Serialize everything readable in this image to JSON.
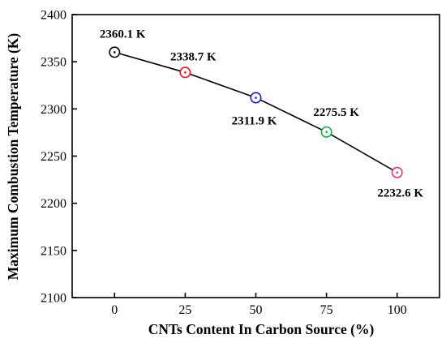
{
  "chart_data": {
    "type": "line",
    "title": "",
    "xlabel": "CNTs Content In Carbon Source (%)",
    "ylabel": "Maximum Combustion Temperature (K)",
    "x": [
      0,
      25,
      50,
      75,
      100
    ],
    "xlim": [
      -15,
      115
    ],
    "ylim": [
      2100,
      2400
    ],
    "xticks": [
      0,
      25,
      50,
      75,
      100
    ],
    "xtick_labels": [
      "0",
      "25",
      "50",
      "75",
      "100"
    ],
    "yticks": [
      2100,
      2150,
      2200,
      2250,
      2300,
      2350,
      2400
    ],
    "ytick_labels": [
      "2100",
      "2150",
      "2200",
      "2250",
      "2300",
      "2350",
      "2400"
    ],
    "grid": false,
    "series": [
      {
        "values": [
          2360.1,
          2338.7,
          2311.9,
          2275.5,
          2232.6
        ],
        "line_color": "#000000",
        "marker": "circle-dot",
        "marker_colors": [
          "#000000",
          "#ee1111",
          "#1a1acc",
          "#11aa44",
          "#e0348c"
        ],
        "data_labels": [
          "2360.1 K",
          "2338.7 K",
          "2311.9 K",
          "2275.5 K",
          "2232.6 K"
        ],
        "label_positions": [
          "above",
          "above",
          "below",
          "above",
          "below"
        ]
      }
    ]
  }
}
